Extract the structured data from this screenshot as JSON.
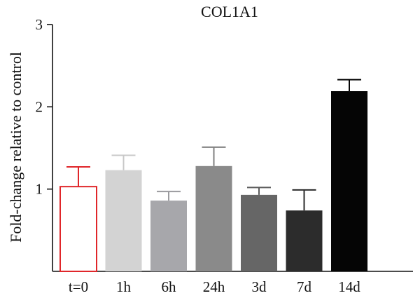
{
  "chart_data": {
    "type": "bar",
    "title": "COL1A1",
    "xlabel": "",
    "ylabel": "Fold-change relative to control",
    "categories": [
      "t=0",
      "1h",
      "6h",
      "24h",
      "3d",
      "7d",
      "14d"
    ],
    "values": [
      1.03,
      1.23,
      0.86,
      1.28,
      0.93,
      0.74,
      2.19
    ],
    "errors": [
      0.24,
      0.18,
      0.11,
      0.23,
      0.09,
      0.25,
      0.14
    ],
    "ylim": [
      0,
      3
    ],
    "yticks": [
      1,
      2,
      3
    ],
    "bar_fills": [
      "#ffffff",
      "#d3d3d3",
      "#a7a7ab",
      "#8a8a8a",
      "#666666",
      "#2c2c2c",
      "#050505"
    ],
    "bar_strokes": [
      "#e0262a",
      "#d3d3d3",
      "#a7a7ab",
      "#8a8a8a",
      "#666666",
      "#2c2c2c",
      "#050505"
    ],
    "error_colors": [
      "#e0262a",
      "#c8c8c8",
      "#9a9a9e",
      "#808080",
      "#5c5c5c",
      "#2c2c2c",
      "#050505"
    ],
    "grid": false,
    "legend": "none"
  }
}
